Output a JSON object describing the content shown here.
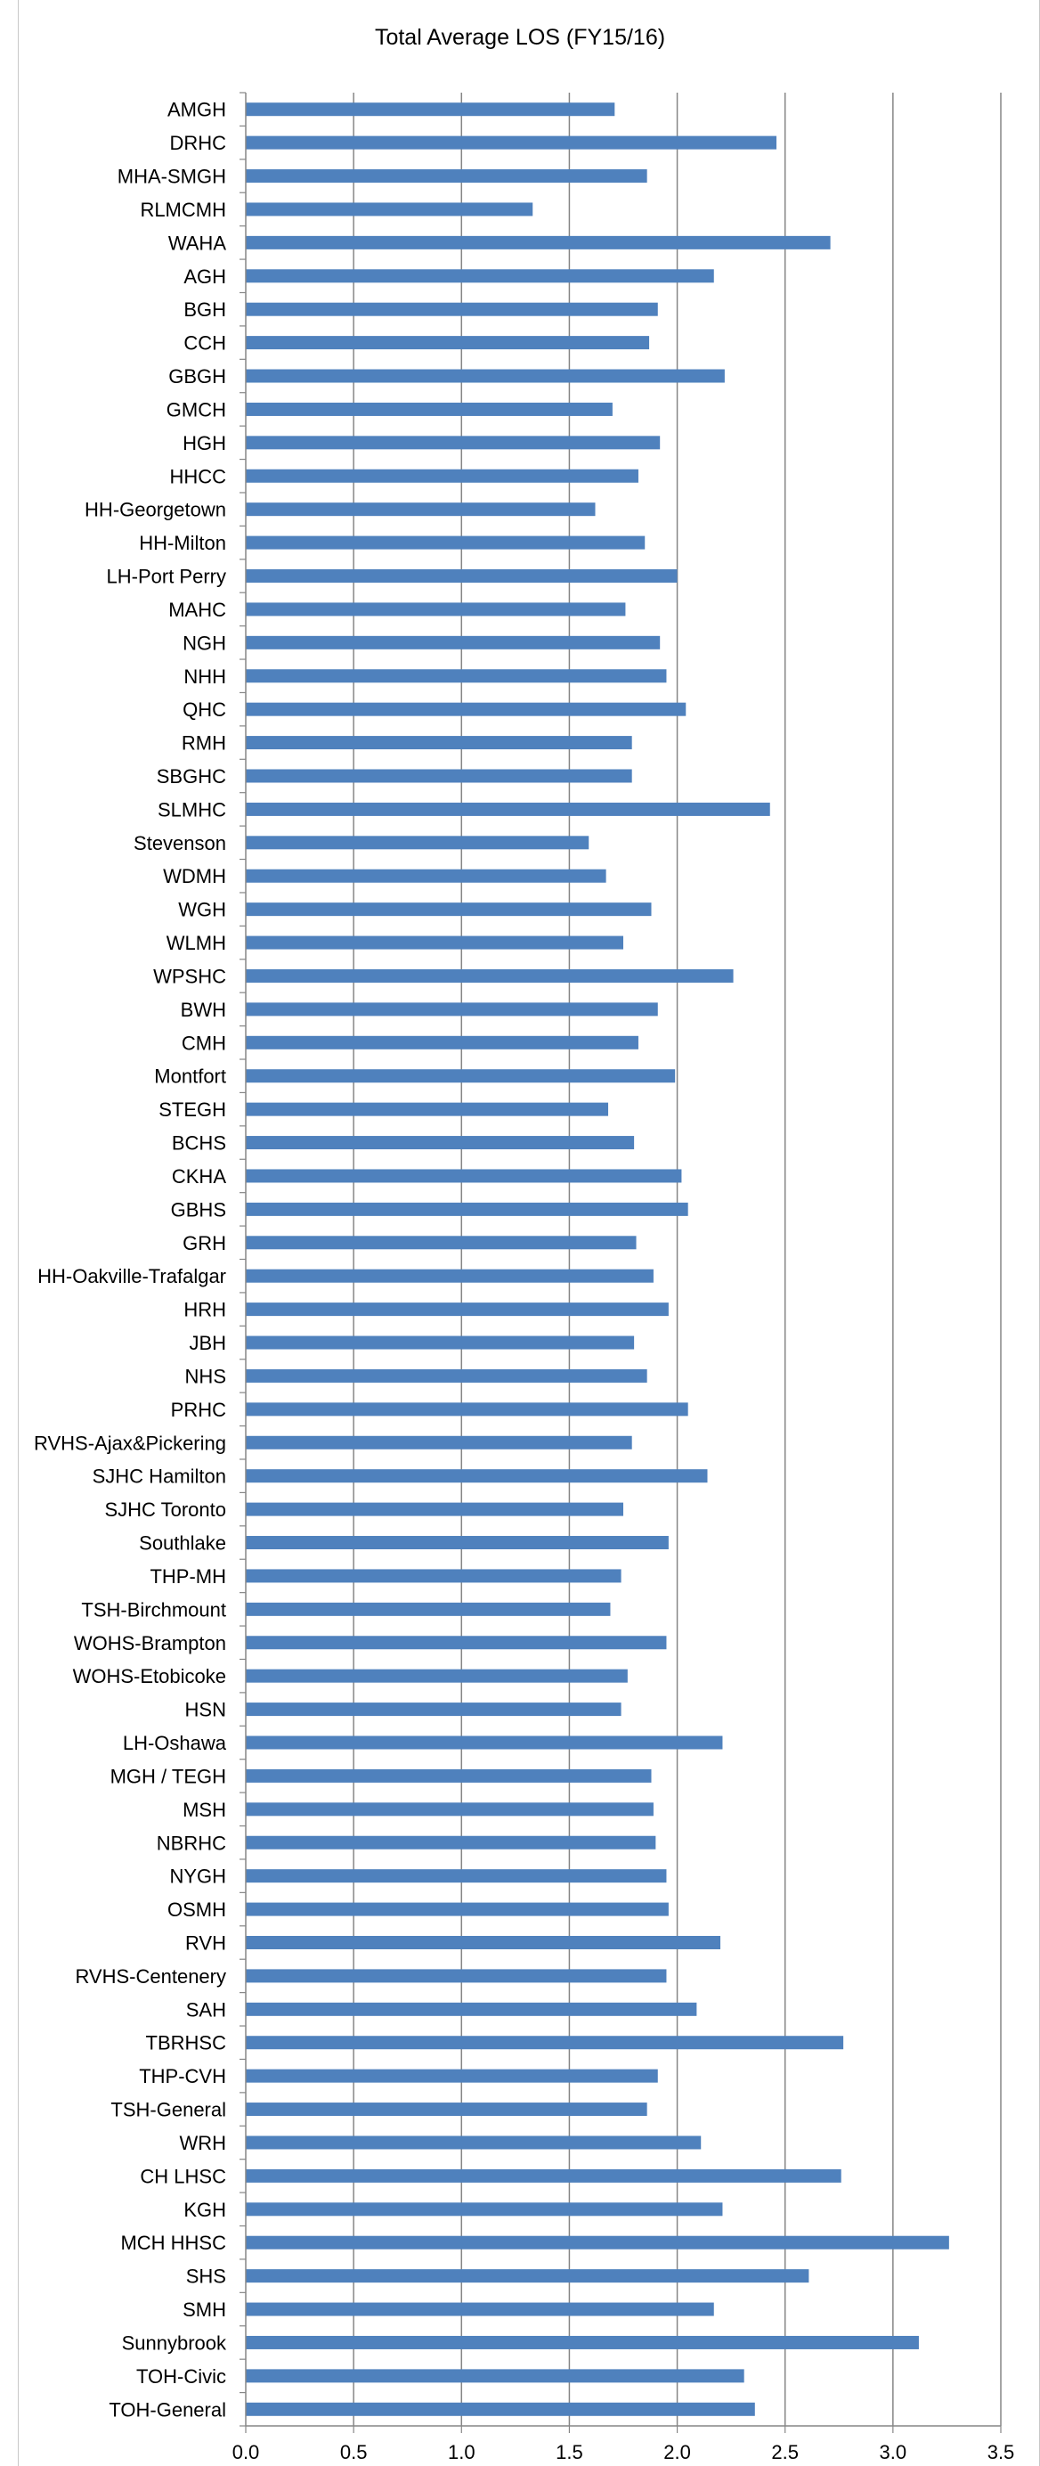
{
  "chart_data": {
    "type": "bar",
    "orientation": "horizontal",
    "title": "Total Average LOS (FY15/16)",
    "xlabel": "",
    "ylabel": "",
    "xlim": [
      0,
      3.5
    ],
    "x_ticks": [
      "0.0",
      "0.5",
      "1.0",
      "1.5",
      "2.0",
      "2.5",
      "3.0",
      "3.5"
    ],
    "x_tick_values": [
      0,
      0.5,
      1.0,
      1.5,
      2.0,
      2.5,
      3.0,
      3.5
    ],
    "grid": "vertical",
    "legend": "none",
    "bar_color": "#4f81bd",
    "grid_color": "#868686",
    "categories": [
      "AMGH",
      "DRHC",
      "MHA-SMGH",
      "RLMCMH",
      "WAHA",
      "AGH",
      "BGH",
      "CCH",
      "GBGH",
      "GMCH",
      "HGH",
      "HHCC",
      "HH-Georgetown",
      "HH-Milton",
      "LH-Port Perry",
      "MAHC",
      "NGH",
      "NHH",
      "QHC",
      "RMH",
      "SBGHC",
      "SLMHC",
      "Stevenson",
      "WDMH",
      "WGH",
      "WLMH",
      "WPSHC",
      "BWH",
      "CMH",
      "Montfort",
      "STEGH",
      "BCHS",
      "CKHA",
      "GBHS",
      "GRH",
      "HH-Oakville-Trafalgar",
      "HRH",
      "JBH",
      "NHS",
      "PRHC",
      "RVHS-Ajax&Pickering",
      "SJHC Hamilton",
      "SJHC Toronto",
      "Southlake",
      "THP-MH",
      "TSH-Birchmount",
      "WOHS-Brampton",
      "WOHS-Etobicoke",
      "HSN",
      "LH-Oshawa",
      "MGH / TEGH",
      "MSH",
      "NBRHC",
      "NYGH",
      "OSMH",
      "RVH",
      "RVHS-Centenery",
      "SAH",
      "TBRHSC",
      "THP-CVH",
      "TSH-General",
      "WRH",
      "CH LHSC",
      "KGH",
      "MCH HHSC",
      "SHS",
      "SMH",
      "Sunnybrook",
      "TOH-Civic",
      "TOH-General"
    ],
    "values": [
      1.71,
      2.46,
      1.86,
      1.33,
      2.71,
      2.17,
      1.91,
      1.87,
      2.22,
      1.7,
      1.92,
      1.82,
      1.62,
      1.85,
      2.0,
      1.76,
      1.92,
      1.95,
      2.04,
      1.79,
      1.79,
      2.43,
      1.59,
      1.67,
      1.88,
      1.75,
      2.26,
      1.91,
      1.82,
      1.99,
      1.68,
      1.8,
      2.02,
      2.05,
      1.81,
      1.89,
      1.96,
      1.8,
      1.86,
      2.05,
      1.79,
      2.14,
      1.75,
      1.96,
      1.74,
      1.69,
      1.95,
      1.77,
      1.74,
      2.21,
      1.88,
      1.89,
      1.9,
      1.95,
      1.96,
      2.2,
      1.95,
      2.09,
      2.77,
      1.91,
      1.86,
      2.11,
      2.76,
      2.21,
      3.26,
      2.61,
      2.17,
      3.12,
      2.31,
      2.36
    ]
  }
}
